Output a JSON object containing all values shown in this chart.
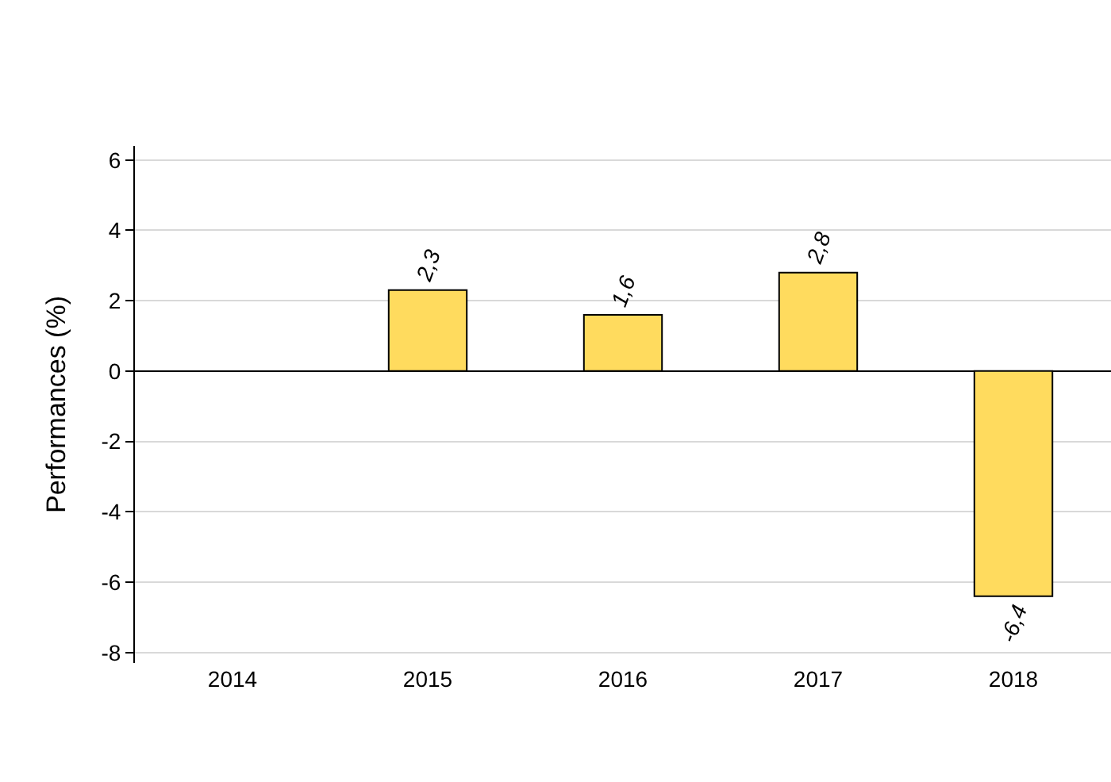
{
  "chart_data": {
    "type": "bar",
    "ylabel": "Performances (%)",
    "categories": [
      "2014",
      "2015",
      "2016",
      "2017",
      "2018"
    ],
    "values": [
      null,
      2.3,
      1.6,
      2.8,
      -6.4
    ],
    "value_labels": [
      null,
      "2,3",
      "1,6",
      "2,8",
      "-6,4"
    ],
    "color": "#ffdb5e",
    "ylim": [
      -8.3,
      6.4
    ],
    "yticks": [
      -8,
      -6,
      -4,
      -2,
      0,
      2,
      4,
      6
    ],
    "grid": "y"
  }
}
